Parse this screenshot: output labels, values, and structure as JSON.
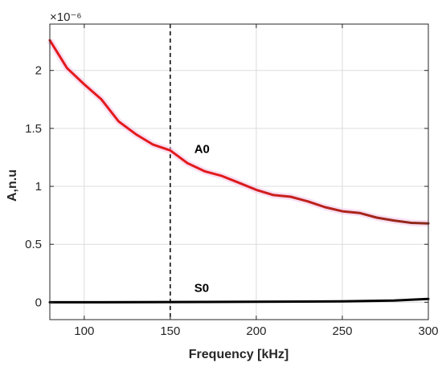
{
  "chart_data": {
    "type": "line",
    "title": "",
    "xlabel": "Frequency [kHz]",
    "ylabel": "A,n.u",
    "y_exponent_label": "×10⁻⁶",
    "xlim": [
      80,
      300
    ],
    "ylim": [
      -0.15,
      2.4
    ],
    "xticks": [
      100,
      150,
      200,
      250,
      300
    ],
    "yticks": [
      0,
      0.5,
      1,
      1.5,
      2
    ],
    "grid": true,
    "legend": "none",
    "vline": {
      "x": 150,
      "style": "dashed"
    },
    "series": [
      {
        "name": "A0",
        "color": "#e41a1c",
        "color_end": "#8b2a1a",
        "x": [
          80,
          90,
          100,
          110,
          120,
          130,
          140,
          150,
          160,
          170,
          180,
          190,
          200,
          210,
          220,
          230,
          240,
          250,
          260,
          270,
          280,
          290,
          300
        ],
        "y": [
          2.26,
          2.02,
          1.88,
          1.75,
          1.56,
          1.45,
          1.36,
          1.31,
          1.2,
          1.13,
          1.09,
          1.03,
          0.97,
          0.925,
          0.91,
          0.87,
          0.82,
          0.785,
          0.77,
          0.73,
          0.705,
          0.685,
          0.68
        ]
      },
      {
        "name": "S0",
        "color": "#000000",
        "x": [
          80,
          100,
          150,
          200,
          250,
          280,
          300
        ],
        "y": [
          0.0,
          0.0,
          0.002,
          0.004,
          0.008,
          0.015,
          0.028
        ]
      }
    ],
    "annotations": [
      {
        "text": "A0",
        "x": 163,
        "y": 1.33
      },
      {
        "text": "S0",
        "x": 163,
        "y": 0.13
      }
    ]
  }
}
